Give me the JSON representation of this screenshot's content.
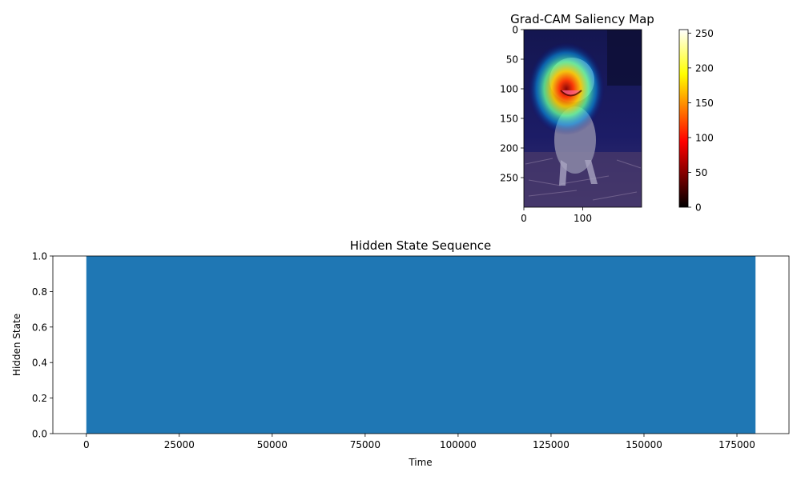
{
  "chart_data": [
    {
      "type": "heatmap",
      "title": "Grad-CAM Saliency Map",
      "image_description": "photo of a puppy sitting on straw in a dark forest, overlaid with a jet-colormap saliency heatmap",
      "image_shape": [
        300,
        200
      ],
      "xlim": [
        0,
        200
      ],
      "ylim": [
        300,
        0
      ],
      "x_ticks": [
        0,
        100
      ],
      "y_ticks": [
        0,
        50,
        100,
        150,
        200,
        250
      ],
      "saliency_peak": {
        "x": 70,
        "y": 100
      },
      "colorbar": {
        "range": [
          0,
          255
        ],
        "ticks": [
          0,
          50,
          100,
          150,
          200,
          250
        ],
        "colormap": "hot"
      },
      "overlay_colormap": "jet"
    },
    {
      "type": "bar",
      "title": "Hidden State Sequence",
      "xlabel": "Time",
      "ylabel": "Hidden State",
      "xlim": [
        -9000,
        189000
      ],
      "ylim": [
        0,
        1
      ],
      "x_ticks": [
        0,
        25000,
        50000,
        75000,
        100000,
        125000,
        150000,
        175000
      ],
      "y_ticks": [
        0.0,
        0.2,
        0.4,
        0.6,
        0.8,
        1.0
      ],
      "fill_color": "#1f77b4",
      "series": [
        {
          "x_start": 0,
          "x_end": 180000,
          "value": 1
        }
      ]
    }
  ]
}
